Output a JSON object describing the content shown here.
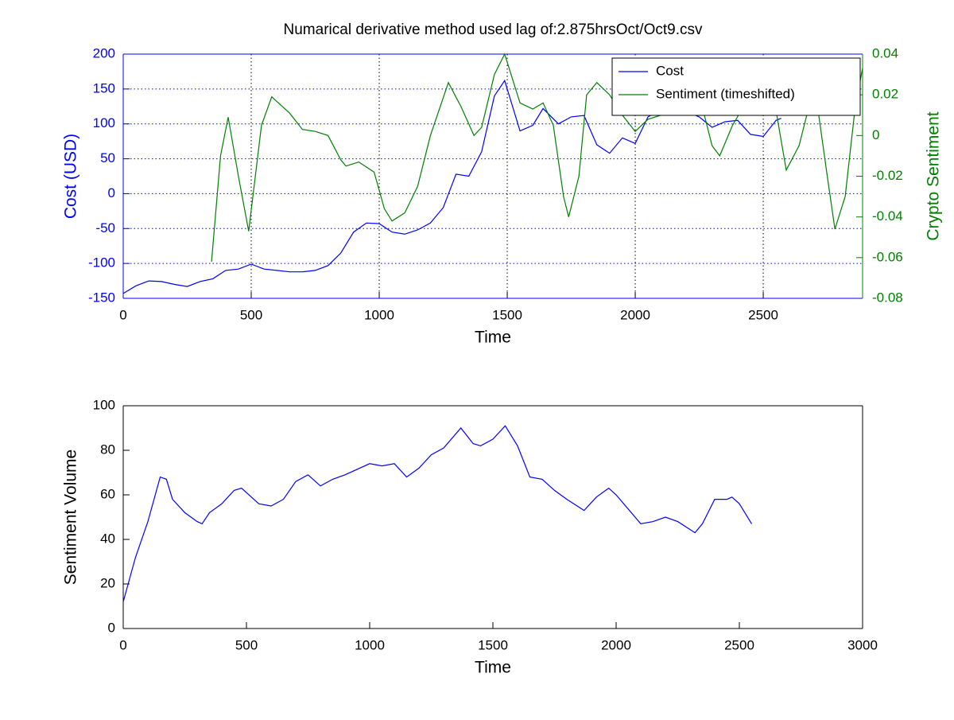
{
  "chart_data": [
    {
      "type": "line",
      "title": "Numarical derivative method used lag of:2.875hrsOct/Oct9.csv",
      "xlabel": "Time",
      "ylabel": "Cost (USD)",
      "y2label": "Crypto Sentiment",
      "ycolor": "#0000ff",
      "y2color": "#008000",
      "xlim": [
        0,
        2888
      ],
      "xticks": [
        0,
        500,
        1000,
        1500,
        2000,
        2500
      ],
      "ylim": [
        -150,
        200
      ],
      "yticks": [
        -150,
        -100,
        -50,
        0,
        50,
        100,
        150,
        200
      ],
      "y2lim": [
        -0.08,
        0.04
      ],
      "y2ticks": [
        -0.08,
        -0.06,
        -0.04,
        -0.02,
        0,
        0.02,
        0.04
      ],
      "grid": true,
      "legend": "upper right",
      "series": [
        {
          "name": "Cost",
          "color": "#0000ff",
          "x": [
            0,
            50,
            100,
            150,
            200,
            250,
            300,
            350,
            400,
            450,
            500,
            550,
            600,
            650,
            700,
            750,
            800,
            850,
            900,
            950,
            1000,
            1050,
            1100,
            1150,
            1200,
            1250,
            1300,
            1350,
            1400,
            1450,
            1490,
            1550,
            1600,
            1640,
            1700,
            1750,
            1800,
            1850,
            1900,
            1950,
            2000,
            2050,
            2100,
            2150,
            2200,
            2250,
            2300,
            2350,
            2400,
            2450,
            2500,
            2550,
            2570
          ],
          "values": [
            -143,
            -132,
            -125,
            -126,
            -130,
            -133,
            -126,
            -122,
            -110,
            -108,
            -101,
            -108,
            -110,
            -112,
            -112,
            -110,
            -103,
            -85,
            -55,
            -42,
            -43,
            -55,
            -58,
            -52,
            -42,
            -20,
            28,
            25,
            60,
            140,
            162,
            90,
            98,
            122,
            100,
            110,
            112,
            70,
            58,
            80,
            72,
            110,
            120,
            128,
            118,
            110,
            95,
            103,
            105,
            85,
            82,
            105,
            108
          ]
        },
        {
          "name": "Sentiment (timeshifted)",
          "color": "#008000",
          "axis": "y2",
          "x": [
            345,
            380,
            410,
            450,
            490,
            540,
            580,
            650,
            700,
            750,
            800,
            850,
            870,
            920,
            980,
            1020,
            1050,
            1100,
            1150,
            1200,
            1270,
            1320,
            1370,
            1400,
            1450,
            1490,
            1550,
            1600,
            1640,
            1680,
            1720,
            1740,
            1780,
            1810,
            1850,
            1900,
            1950,
            2000,
            2050,
            2100,
            2150,
            2200,
            2250,
            2300,
            2330,
            2380,
            2450,
            2500,
            2550,
            2590,
            2640,
            2700,
            2750,
            2780,
            2820,
            2860,
            2888
          ],
          "values": [
            -0.062,
            -0.01,
            0.009,
            -0.02,
            -0.047,
            0.005,
            0.019,
            0.011,
            0.003,
            0.002,
            0.0,
            -0.012,
            -0.015,
            -0.013,
            -0.018,
            -0.036,
            -0.042,
            -0.038,
            -0.025,
            0.0,
            0.026,
            0.014,
            0.0,
            0.004,
            0.03,
            0.04,
            0.016,
            0.013,
            0.016,
            0.005,
            -0.03,
            -0.04,
            -0.02,
            0.02,
            0.026,
            0.02,
            0.01,
            0.002,
            0.008,
            0.01,
            0.016,
            0.02,
            0.02,
            -0.005,
            -0.01,
            0.005,
            0.02,
            0.025,
            0.012,
            -0.017,
            -0.005,
            0.025,
            -0.02,
            -0.046,
            -0.03,
            0.015,
            0.033
          ]
        }
      ]
    },
    {
      "type": "line",
      "xlabel": "Time",
      "ylabel": "Sentiment Volume",
      "xlim": [
        0,
        3000
      ],
      "xticks": [
        0,
        500,
        1000,
        1500,
        2000,
        2500,
        3000
      ],
      "ylim": [
        0,
        100
      ],
      "yticks": [
        0,
        20,
        40,
        60,
        80,
        100
      ],
      "grid": false,
      "series": [
        {
          "color": "#0000ff",
          "x": [
            0,
            50,
            100,
            150,
            175,
            200,
            250,
            300,
            320,
            350,
            400,
            450,
            480,
            550,
            600,
            650,
            700,
            750,
            800,
            850,
            900,
            1000,
            1050,
            1100,
            1150,
            1200,
            1250,
            1300,
            1370,
            1420,
            1450,
            1500,
            1550,
            1600,
            1650,
            1700,
            1750,
            1800,
            1870,
            1920,
            1970,
            2000,
            2100,
            2150,
            2200,
            2250,
            2320,
            2350,
            2400,
            2450,
            2470,
            2500,
            2550
          ],
          "values": [
            12,
            32,
            48,
            68,
            67,
            58,
            52,
            48,
            47,
            52,
            56,
            62,
            63,
            56,
            55,
            58,
            66,
            69,
            64,
            67,
            69,
            74,
            73,
            74,
            68,
            72,
            78,
            81,
            90,
            83,
            82,
            85,
            91,
            82,
            68,
            67,
            62,
            58,
            53,
            59,
            63,
            60,
            47,
            48,
            50,
            48,
            43,
            47,
            58,
            58,
            59,
            56,
            47
          ]
        }
      ]
    }
  ]
}
